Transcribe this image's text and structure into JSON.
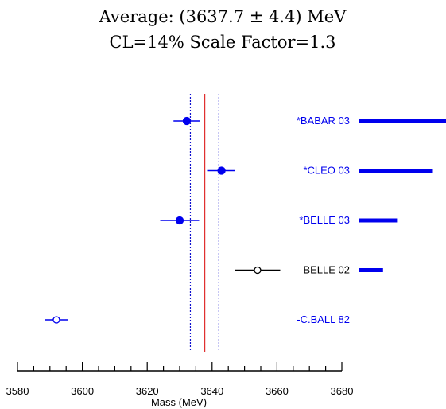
{
  "chart_data": {
    "type": "scatter",
    "title": "Average: (3637.7 ± 4.4) MeV",
    "subtitle": "CL=14% Scale Factor=1.3",
    "xlabel": "Mass (MeV)",
    "ylabel": "",
    "xlim": [
      3580,
      3680
    ],
    "x_ticks": [
      3580,
      3600,
      3620,
      3640,
      3660,
      3680
    ],
    "average": {
      "value": 3637.7,
      "error": 4.4
    },
    "grid": false,
    "colors": {
      "average_line": "#e03030",
      "band_lines": "#1010d0",
      "used": "#0000ee",
      "unused_black": "#000000",
      "axis": "#000000"
    },
    "measurements": [
      {
        "label": "*BABAR 03",
        "value": 3632.2,
        "error": 4.1,
        "marker": "filled",
        "color": "#0000ee",
        "weight": 1.0
      },
      {
        "label": "*CLEO 03",
        "value": 3642.9,
        "error": 4.2,
        "marker": "filled",
        "color": "#0000ee",
        "weight": 0.85
      },
      {
        "label": "*BELLE 03",
        "value": 3630.0,
        "error": 6.0,
        "marker": "filled",
        "color": "#0000ee",
        "weight": 0.44
      },
      {
        "label": "BELLE 02",
        "value": 3654.0,
        "error": 7.0,
        "marker": "open",
        "color": "#000000",
        "weight": 0.28
      },
      {
        "label": "-C.BALL 82",
        "value": 3592.0,
        "error": 3.6,
        "marker": "open",
        "color": "#0000ee",
        "weight": 0
      }
    ]
  }
}
